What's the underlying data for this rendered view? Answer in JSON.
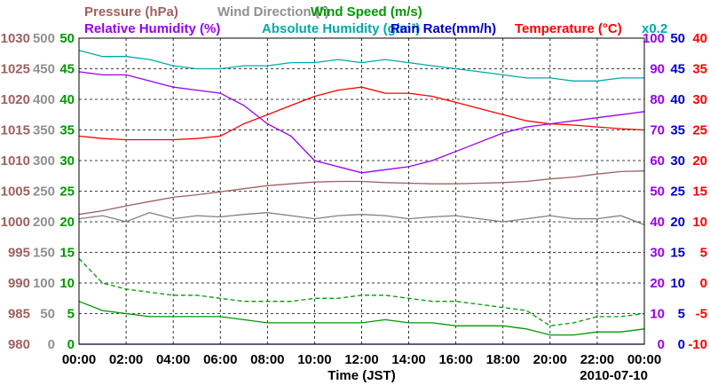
{
  "chart_data": {
    "type": "line",
    "date": "2010-07-10",
    "xlabel": "Time (JST)",
    "x_ticks": [
      "00:00",
      "02:00",
      "04:00",
      "06:00",
      "08:00",
      "10:00",
      "12:00",
      "14:00",
      "16:00",
      "18:00",
      "20:00",
      "22:00",
      "00:00"
    ],
    "legend_row1": [
      {
        "text": "Pressure (hPa)",
        "color": "#a06060"
      },
      {
        "text": "Wind Direction (°)",
        "color": "#909090"
      },
      {
        "text": "Wind Speed (m/s)",
        "color": "#009900"
      }
    ],
    "legend_row2": [
      {
        "text": "Relative Humidity (%)",
        "color": "#9900ee"
      },
      {
        "text": "Absolute Humidity (g/m³)",
        "color": "#00aaaa"
      },
      {
        "text": "Rain Rate(mm/h)",
        "color": "#0000cc"
      },
      {
        "text": "Temperature (°C)",
        "color": "#ff0000"
      },
      {
        "text": "x0.2",
        "color": "#00aaaa"
      }
    ],
    "axes": {
      "pressure": {
        "color": "#a06060",
        "ticks": [
          "980",
          "985",
          "990",
          "995",
          "1000",
          "1005",
          "1010",
          "1015",
          "1020",
          "1025",
          "1030"
        ],
        "range": [
          980,
          1030
        ]
      },
      "wind_direction": {
        "color": "#909090",
        "ticks": [
          "0",
          "50",
          "100",
          "150",
          "200",
          "250",
          "300",
          "350",
          "400",
          "450",
          "500"
        ],
        "range": [
          0,
          500
        ]
      },
      "wind_speed": {
        "color": "#009900",
        "ticks": [
          "0",
          "5",
          "10",
          "15",
          "20",
          "25",
          "30",
          "35",
          "40",
          "45",
          "50"
        ],
        "range": [
          0,
          50
        ]
      },
      "relative_humidity": {
        "color": "#9900ee",
        "ticks": [
          "0",
          "10",
          "20",
          "30",
          "40",
          "50",
          "60",
          "70",
          "80",
          "90",
          "100"
        ],
        "range": [
          0,
          100
        ]
      },
      "rain_rate": {
        "color": "#0000cc",
        "ticks": [
          "0",
          "5",
          "10",
          "15",
          "20",
          "25",
          "30",
          "35",
          "40",
          "45",
          "50"
        ],
        "range": [
          0,
          50
        ]
      },
      "temperature": {
        "color": "#ff0000",
        "ticks": [
          "-10",
          "-5",
          "0",
          "5",
          "10",
          "15",
          "20",
          "25",
          "30",
          "35",
          "40"
        ],
        "range": [
          -10,
          40
        ]
      }
    },
    "series": [
      {
        "name": "Pressure",
        "color": "#a06060",
        "axis": "pressure",
        "style": "solid",
        "x": [
          0,
          1,
          2,
          3,
          4,
          5,
          6,
          7,
          8,
          9,
          10,
          11,
          12,
          13,
          14,
          15,
          16,
          17,
          18,
          19,
          20,
          21,
          22,
          23,
          24
        ],
        "values": [
          1001.2,
          1001.8,
          1002.6,
          1003.3,
          1004.0,
          1004.4,
          1004.9,
          1005.4,
          1005.9,
          1006.2,
          1006.5,
          1006.6,
          1006.6,
          1006.4,
          1006.3,
          1006.2,
          1006.2,
          1006.3,
          1006.4,
          1006.6,
          1007.0,
          1007.3,
          1007.8,
          1008.2,
          1008.3
        ]
      },
      {
        "name": "Wind Direction",
        "color": "#808080",
        "axis": "wind_direction",
        "style": "solid",
        "x": [
          0,
          1,
          2,
          3,
          4,
          5,
          6,
          7,
          8,
          9,
          10,
          11,
          12,
          13,
          14,
          15,
          16,
          17,
          18,
          19,
          20,
          21,
          22,
          23,
          24
        ],
        "values": [
          205,
          210,
          200,
          215,
          205,
          210,
          208,
          212,
          215,
          210,
          205,
          210,
          212,
          210,
          205,
          208,
          210,
          205,
          200,
          205,
          210,
          205,
          205,
          210,
          195
        ]
      },
      {
        "name": "Wind Speed",
        "color": "#009900",
        "axis": "wind_speed",
        "style": "solid",
        "x": [
          0,
          1,
          2,
          3,
          4,
          5,
          6,
          7,
          8,
          9,
          10,
          11,
          12,
          13,
          14,
          15,
          16,
          17,
          18,
          19,
          20,
          21,
          22,
          23,
          24
        ],
        "values": [
          7,
          5.5,
          5,
          4.5,
          4.5,
          4.5,
          4.5,
          4,
          3.5,
          3.5,
          3.5,
          3.5,
          3.5,
          4,
          3.5,
          3.5,
          3,
          3,
          3,
          2.5,
          1.5,
          1.5,
          2,
          2,
          2.5
        ]
      },
      {
        "name": "Wind Speed Gust",
        "color": "#009900",
        "axis": "wind_speed",
        "style": "dashed",
        "x": [
          0,
          1,
          2,
          3,
          4,
          5,
          6,
          7,
          8,
          9,
          10,
          11,
          12,
          13,
          14,
          15,
          16,
          17,
          18,
          19,
          20,
          21,
          22,
          23,
          24
        ],
        "values": [
          14,
          10,
          9,
          8.5,
          8,
          8,
          7.5,
          7,
          7,
          7,
          7.5,
          7.5,
          8,
          8,
          7.5,
          7,
          7,
          6.5,
          6,
          5.5,
          3,
          3.5,
          4.5,
          4.5,
          5
        ]
      },
      {
        "name": "Relative Humidity",
        "color": "#9900ee",
        "axis": "relative_humidity",
        "style": "solid",
        "x": [
          0,
          1,
          2,
          3,
          4,
          5,
          6,
          7,
          8,
          9,
          10,
          11,
          12,
          13,
          14,
          15,
          16,
          17,
          18,
          19,
          20,
          21,
          22,
          23,
          24
        ],
        "values": [
          89,
          88,
          88,
          86,
          84,
          83,
          82,
          78,
          72,
          68,
          60,
          58,
          56,
          57,
          58,
          60,
          63,
          66,
          69,
          71,
          72,
          73,
          74,
          75,
          76
        ]
      },
      {
        "name": "Absolute Humidity x0.2",
        "color": "#00aaaa",
        "axis": "relative_humidity",
        "style": "solid",
        "x": [
          0,
          1,
          2,
          3,
          4,
          5,
          6,
          7,
          8,
          9,
          10,
          11,
          12,
          13,
          14,
          15,
          16,
          17,
          18,
          19,
          20,
          21,
          22,
          23,
          24
        ],
        "values": [
          96,
          94,
          94,
          93,
          91,
          90,
          90,
          91,
          91,
          92,
          92,
          93,
          92,
          93,
          92,
          91,
          90,
          89,
          88,
          87,
          87,
          86,
          86,
          87,
          87
        ]
      },
      {
        "name": "Rain Rate",
        "color": "#0000cc",
        "axis": "rain_rate",
        "style": "solid",
        "x": [
          0,
          24
        ],
        "values": [
          0,
          0
        ]
      },
      {
        "name": "Temperature",
        "color": "#ff0000",
        "axis": "temperature",
        "style": "solid",
        "x": [
          0,
          1,
          2,
          3,
          4,
          5,
          6,
          7,
          8,
          9,
          10,
          11,
          12,
          13,
          14,
          15,
          16,
          17,
          18,
          19,
          20,
          21,
          22,
          23,
          24
        ],
        "values": [
          24,
          23.6,
          23.4,
          23.4,
          23.4,
          23.6,
          24,
          26,
          27.5,
          29,
          30.5,
          31.5,
          32,
          31,
          31,
          30.5,
          29.5,
          28.5,
          27.5,
          26.5,
          26,
          25.8,
          25.5,
          25.2,
          25
        ]
      }
    ]
  }
}
